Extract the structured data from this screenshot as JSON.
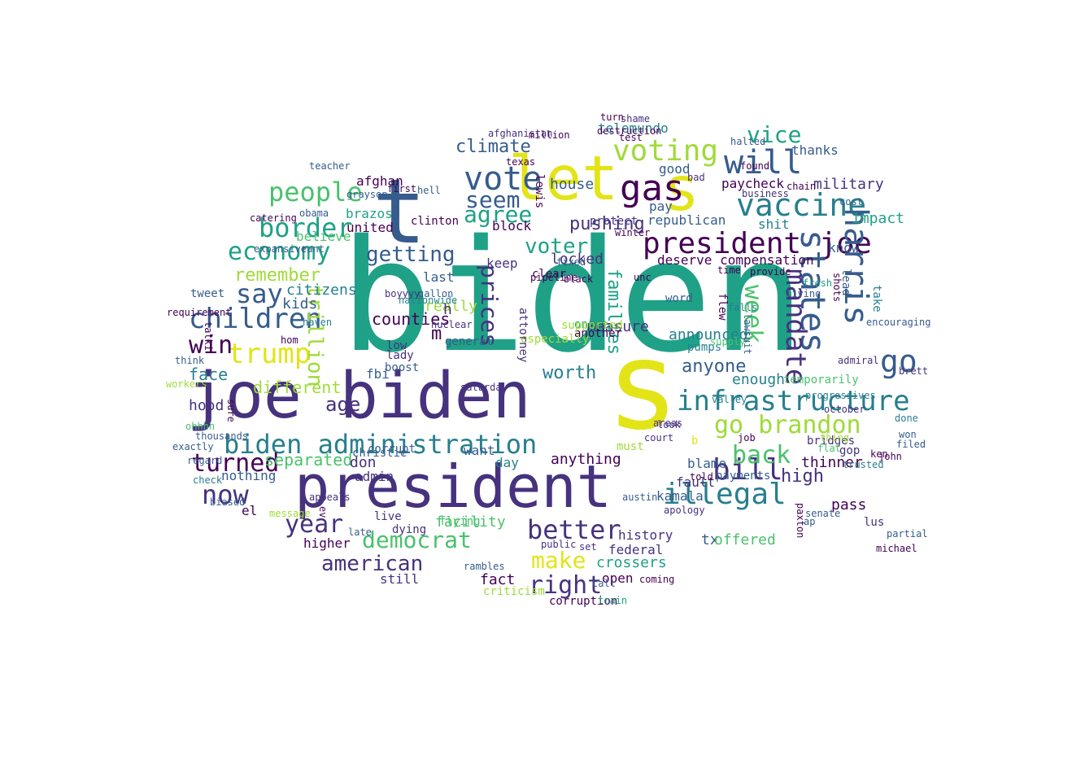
{
  "palette": {
    "teal": "#1fa187",
    "indigo": "#46327e",
    "dark": "#440154",
    "blue": "#365c8d",
    "cyan": "#277f8e",
    "green": "#4ac16d",
    "lime": "#a0da39",
    "yellow": "#e3e418"
  },
  "words": [
    {
      "text": "biden",
      "color": "teal"
    },
    {
      "text": "s",
      "color": "yellow"
    },
    {
      "text": "joe biden",
      "color": "indigo"
    },
    {
      "text": "president",
      "color": "indigo"
    },
    {
      "text": "let",
      "color": "yellow"
    },
    {
      "text": "s",
      "color": "yellow"
    },
    {
      "text": "t",
      "color": "blue"
    },
    {
      "text": "gas",
      "color": "dark"
    },
    {
      "text": "vote",
      "color": "blue"
    },
    {
      "text": "vaccine",
      "color": "cyan"
    },
    {
      "text": "will",
      "color": "blue"
    },
    {
      "text": "voting",
      "color": "lime"
    },
    {
      "text": "people",
      "color": "green"
    },
    {
      "text": "border",
      "color": "teal"
    },
    {
      "text": "seem",
      "color": "blue"
    },
    {
      "text": "agree",
      "color": "teal"
    },
    {
      "text": "president joe",
      "color": "dark"
    },
    {
      "text": "harris",
      "color": "blue"
    },
    {
      "text": "states",
      "color": "blue"
    },
    {
      "text": "economy",
      "color": "teal"
    },
    {
      "text": "getting",
      "color": "blue"
    },
    {
      "text": "prices",
      "color": "indigo"
    },
    {
      "text": "voter",
      "color": "teal"
    },
    {
      "text": "infrastructure",
      "color": "cyan"
    },
    {
      "text": "go brandon",
      "color": "lime"
    },
    {
      "text": "biden administration",
      "color": "cyan"
    },
    {
      "text": "children",
      "color": "blue"
    },
    {
      "text": "trump",
      "color": "yellow"
    },
    {
      "text": "say",
      "color": "blue"
    },
    {
      "text": "win",
      "color": "dark"
    },
    {
      "text": "remember",
      "color": "lime"
    },
    {
      "text": "week",
      "color": "green"
    },
    {
      "text": "mandate",
      "color": "indigo"
    },
    {
      "text": "go",
      "color": "blue"
    },
    {
      "text": "bill",
      "color": "indigo"
    },
    {
      "text": "back",
      "color": "green"
    },
    {
      "text": "illegal",
      "color": "cyan"
    },
    {
      "text": "now",
      "color": "indigo"
    },
    {
      "text": "turned",
      "color": "dark"
    },
    {
      "text": "year",
      "color": "indigo"
    },
    {
      "text": "democrat",
      "color": "green"
    },
    {
      "text": "make",
      "color": "yellow"
    },
    {
      "text": "better",
      "color": "indigo"
    },
    {
      "text": "right",
      "color": "indigo"
    },
    {
      "text": "american",
      "color": "indigo"
    },
    {
      "text": "climate",
      "color": "blue"
    },
    {
      "text": "vice",
      "color": "teal"
    },
    {
      "text": "families",
      "color": "teal"
    },
    {
      "text": "anyone",
      "color": "blue"
    },
    {
      "text": "worth",
      "color": "cyan"
    },
    {
      "text": "age",
      "color": "indigo"
    },
    {
      "text": "separated",
      "color": "green"
    },
    {
      "text": "high",
      "color": "indigo"
    },
    {
      "text": "facility",
      "color": "green"
    },
    {
      "text": "trillion",
      "color": "lime"
    },
    {
      "text": "military",
      "color": "indigo"
    },
    {
      "text": "thanks",
      "color": "blue"
    },
    {
      "text": "deserve compensation",
      "color": "dark"
    },
    {
      "text": "republican",
      "color": "blue"
    },
    {
      "text": "telemundo",
      "color": "cyan"
    },
    {
      "text": "house",
      "color": "blue"
    },
    {
      "text": "locked",
      "color": "indigo"
    },
    {
      "text": "pay",
      "color": "blue"
    },
    {
      "text": "impact",
      "color": "teal"
    },
    {
      "text": "paycheck",
      "color": "dark"
    },
    {
      "text": "good",
      "color": "blue"
    },
    {
      "text": "announced",
      "color": "cyan"
    },
    {
      "text": "keep",
      "color": "indigo"
    },
    {
      "text": "last",
      "color": "blue"
    },
    {
      "text": "really",
      "color": "lime"
    },
    {
      "text": "citizens",
      "color": "cyan"
    },
    {
      "text": "kids",
      "color": "blue"
    },
    {
      "text": "face",
      "color": "cyan"
    },
    {
      "text": "different",
      "color": "lime"
    },
    {
      "text": "fbi",
      "color": "blue"
    },
    {
      "text": "hood",
      "color": "indigo"
    },
    {
      "text": "don",
      "color": "indigo"
    },
    {
      "text": "admin",
      "color": "indigo"
    },
    {
      "text": "day",
      "color": "cyan"
    },
    {
      "text": "want",
      "color": "blue"
    },
    {
      "text": "anything",
      "color": "dark"
    },
    {
      "text": "must",
      "color": "lime"
    },
    {
      "text": "blame",
      "color": "blue"
    },
    {
      "text": "fault",
      "color": "indigo"
    },
    {
      "text": "kamala",
      "color": "blue"
    },
    {
      "text": "tx",
      "color": "blue"
    },
    {
      "text": "offered",
      "color": "green"
    },
    {
      "text": "pass",
      "color": "dark"
    },
    {
      "text": "enough",
      "color": "cyan"
    },
    {
      "text": "thinner",
      "color": "dark"
    },
    {
      "text": "history",
      "color": "indigo"
    },
    {
      "text": "crossers",
      "color": "teal"
    },
    {
      "text": "federal",
      "color": "indigo"
    },
    {
      "text": "open",
      "color": "dark"
    },
    {
      "text": "fact",
      "color": "dark"
    },
    {
      "text": "still",
      "color": "indigo"
    },
    {
      "text": "higher",
      "color": "dark"
    },
    {
      "text": "nothing",
      "color": "blue"
    },
    {
      "text": "counties",
      "color": "dark"
    },
    {
      "text": "shit",
      "color": "cyan"
    },
    {
      "text": "know",
      "color": "blue"
    },
    {
      "text": "lus",
      "color": "indigo"
    },
    {
      "text": "bridges",
      "color": "indigo"
    },
    {
      "text": "gop",
      "color": "indigo"
    },
    {
      "text": "brazos",
      "color": "teal"
    },
    {
      "text": "united",
      "color": "dark"
    },
    {
      "text": "block",
      "color": "dark"
    },
    {
      "text": "afghan",
      "color": "dark"
    },
    {
      "text": "believe",
      "color": "green"
    },
    {
      "text": "word",
      "color": "blue"
    },
    {
      "text": "flew",
      "color": "dark"
    },
    {
      "text": "take",
      "color": "cyan"
    },
    {
      "text": "lead",
      "color": "blue"
    },
    {
      "text": "pushing",
      "color": "indigo"
    },
    {
      "text": "m",
      "color": "dark"
    },
    {
      "text": "h",
      "color": "indigo"
    },
    {
      "text": "el",
      "color": "dark"
    },
    {
      "text": "b",
      "color": "yellow"
    },
    {
      "text": "ap",
      "color": "blue"
    },
    {
      "text": "job",
      "color": "dark"
    },
    {
      "text": "payments",
      "color": "blue"
    },
    {
      "text": "temporarily",
      "color": "green"
    },
    {
      "text": "october",
      "color": "indigo"
    },
    {
      "text": "won",
      "color": "blue"
    },
    {
      "text": "done",
      "color": "cyan"
    },
    {
      "text": "filed",
      "color": "blue"
    },
    {
      "text": "ken",
      "color": "dark"
    },
    {
      "text": "trusted",
      "color": "cyan"
    },
    {
      "text": "shame",
      "color": "indigo"
    },
    {
      "text": "test",
      "color": "dark"
    },
    {
      "text": "found",
      "color": "dark"
    },
    {
      "text": "business",
      "color": "indigo"
    },
    {
      "text": "halted",
      "color": "blue"
    },
    {
      "text": "chain",
      "color": "dark"
    },
    {
      "text": "cost",
      "color": "blue"
    },
    {
      "text": "progressives",
      "color": "cyan"
    },
    {
      "text": "admiral",
      "color": "indigo"
    },
    {
      "text": "teacher",
      "color": "blue"
    },
    {
      "text": "grayson",
      "color": "blue"
    },
    {
      "text": "first",
      "color": "dark"
    },
    {
      "text": "texas",
      "color": "dark"
    },
    {
      "text": "afghanistan",
      "color": "indigo"
    },
    {
      "text": "million",
      "color": "dark"
    },
    {
      "text": "hell",
      "color": "blue"
    },
    {
      "text": "obama",
      "color": "blue"
    },
    {
      "text": "catering",
      "color": "dark"
    },
    {
      "text": "expansive",
      "color": "blue"
    },
    {
      "text": "rant",
      "color": "blue"
    },
    {
      "text": "tweet",
      "color": "blue"
    },
    {
      "text": "haven",
      "color": "cyan"
    },
    {
      "text": "hom",
      "color": "dark"
    },
    {
      "text": "requirement",
      "color": "dark"
    },
    {
      "text": "talki",
      "color": "dark"
    },
    {
      "text": "think",
      "color": "blue"
    },
    {
      "text": "workers",
      "color": "lime"
    },
    {
      "text": "ohhhh",
      "color": "green"
    },
    {
      "text": "sure",
      "color": "dark"
    },
    {
      "text": "thousands",
      "color": "blue"
    },
    {
      "text": "exactly",
      "color": "blue"
    },
    {
      "text": "check",
      "color": "cyan"
    },
    {
      "text": "biased",
      "color": "blue"
    },
    {
      "text": "message",
      "color": "lime"
    },
    {
      "text": "appeals",
      "color": "indigo"
    },
    {
      "text": "ev",
      "color": "dark"
    },
    {
      "text": "late",
      "color": "blue"
    },
    {
      "text": "live",
      "color": "indigo"
    },
    {
      "text": "dying",
      "color": "indigo"
    },
    {
      "text": "criticism",
      "color": "lime"
    },
    {
      "text": "corruption",
      "color": "dark"
    },
    {
      "text": "train",
      "color": "teal"
    },
    {
      "text": "call",
      "color": "blue"
    },
    {
      "text": "coming",
      "color": "dark"
    },
    {
      "text": "set",
      "color": "indigo"
    },
    {
      "text": "austin",
      "color": "blue"
    },
    {
      "text": "apology",
      "color": "indigo"
    },
    {
      "text": "court",
      "color": "indigo"
    },
    {
      "text": "areas",
      "color": "indigo"
    },
    {
      "text": "look",
      "color": "indigo"
    },
    {
      "text": "told",
      "color": "dark"
    },
    {
      "text": "paxton",
      "color": "dark"
    },
    {
      "text": "senate",
      "color": "blue"
    },
    {
      "text": "valley",
      "color": "cyan"
    },
    {
      "text": "measure",
      "color": "indigo"
    },
    {
      "text": "another",
      "color": "dark"
    },
    {
      "text": "one",
      "color": "teal"
    },
    {
      "text": "low",
      "color": "indigo"
    },
    {
      "text": "lady",
      "color": "indigo"
    },
    {
      "text": "boost",
      "color": "blue"
    },
    {
      "text": "general",
      "color": "blue"
    },
    {
      "text": "pumps",
      "color": "cyan"
    },
    {
      "text": "supply",
      "color": "green"
    },
    {
      "text": "falls",
      "color": "cyan"
    },
    {
      "text": "lawsuit",
      "color": "blue"
    },
    {
      "text": "living",
      "color": "blue"
    },
    {
      "text": "shots",
      "color": "dark"
    },
    {
      "text": "encouraging",
      "color": "blue"
    },
    {
      "text": "especially",
      "color": "lime"
    },
    {
      "text": "supported",
      "color": "lime"
    },
    {
      "text": "nationwide",
      "color": "cyan"
    },
    {
      "text": "gallon",
      "color": "blue"
    },
    {
      "text": "nuclear",
      "color": "indigo"
    },
    {
      "text": "boyyyy",
      "color": "indigo"
    },
    {
      "text": "clear",
      "color": "dark"
    },
    {
      "text": "attorney",
      "color": "indigo"
    },
    {
      "text": "christie",
      "color": "blue"
    },
    {
      "text": "corrupt",
      "color": "blue"
    },
    {
      "text": "saturday",
      "color": "indigo"
    },
    {
      "text": "fixed",
      "color": "blue"
    },
    {
      "text": "black",
      "color": "dark"
    },
    {
      "text": "unc",
      "color": "dark"
    },
    {
      "text": "pipeline",
      "color": "dark"
    },
    {
      "text": "time",
      "color": "dark"
    },
    {
      "text": "provide",
      "color": "dark"
    },
    {
      "text": "fresh",
      "color": "teal"
    },
    {
      "text": "winter",
      "color": "dark"
    },
    {
      "text": "destruction",
      "color": "dark"
    },
    {
      "text": "turn",
      "color": "dark"
    },
    {
      "text": "protect",
      "color": "indigo"
    },
    {
      "text": "clinton",
      "color": "dark"
    },
    {
      "text": "lewis",
      "color": "dark"
    },
    {
      "text": "bad",
      "color": "indigo"
    },
    {
      "text": "flat",
      "color": "green"
    },
    {
      "text": "thing",
      "color": "lime"
    },
    {
      "text": "john",
      "color": "dark"
    },
    {
      "text": "brett",
      "color": "indigo"
    },
    {
      "text": "michael",
      "color": "dark"
    },
    {
      "text": "partial",
      "color": "blue"
    },
    {
      "text": "regard",
      "color": "blue"
    },
    {
      "text": "rambles",
      "color": "blue"
    },
    {
      "text": "public",
      "color": "indigo"
    },
    {
      "text": "flying",
      "color": "green"
    },
    {
      "text": "summit",
      "color": "dark"
    },
    {
      "text": "finally",
      "color": "dark"
    },
    {
      "text": "ohhhh",
      "color": "lime"
    }
  ]
}
